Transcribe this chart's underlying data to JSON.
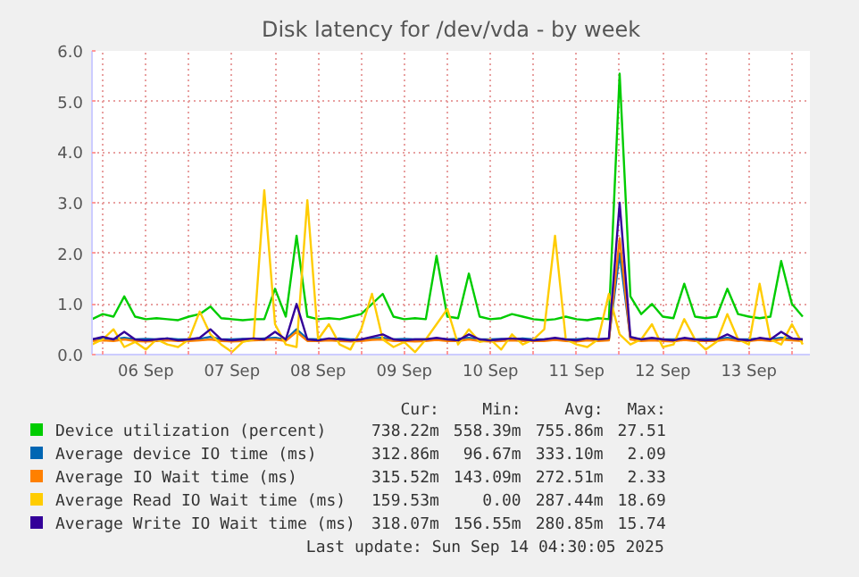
{
  "chart_data": {
    "type": "line",
    "title": "Disk latency for /dev/vda - by week",
    "x": [
      "2025-09-05T21:00",
      "2025-09-06T00:00",
      "2025-09-06T03:00",
      "2025-09-06T06:00",
      "2025-09-06T09:00",
      "2025-09-06T12:00",
      "2025-09-06T15:00",
      "2025-09-06T18:00",
      "2025-09-06T21:00",
      "2025-09-07T00:00",
      "2025-09-07T03:00",
      "2025-09-07T06:00",
      "2025-09-07T09:00",
      "2025-09-07T12:00",
      "2025-09-07T15:00",
      "2025-09-07T18:00",
      "2025-09-07T21:00",
      "2025-09-08T00:00",
      "2025-09-08T03:00",
      "2025-09-08T06:00",
      "2025-09-08T09:00",
      "2025-09-08T12:00",
      "2025-09-08T15:00",
      "2025-09-08T18:00",
      "2025-09-08T21:00",
      "2025-09-09T00:00",
      "2025-09-09T03:00",
      "2025-09-09T06:00",
      "2025-09-09T09:00",
      "2025-09-09T12:00",
      "2025-09-09T15:00",
      "2025-09-09T18:00",
      "2025-09-09T21:00",
      "2025-09-10T00:00",
      "2025-09-10T03:00",
      "2025-09-10T06:00",
      "2025-09-10T09:00",
      "2025-09-10T12:00",
      "2025-09-10T15:00",
      "2025-09-10T18:00",
      "2025-09-10T21:00",
      "2025-09-11T00:00",
      "2025-09-11T03:00",
      "2025-09-11T06:00",
      "2025-09-11T09:00",
      "2025-09-11T12:00",
      "2025-09-11T15:00",
      "2025-09-11T18:00",
      "2025-09-11T21:00",
      "2025-09-12T00:00",
      "2025-09-12T03:00",
      "2025-09-12T06:00",
      "2025-09-12T09:00",
      "2025-09-12T12:00",
      "2025-09-12T15:00",
      "2025-09-12T18:00",
      "2025-09-12T21:00",
      "2025-09-13T00:00",
      "2025-09-13T03:00",
      "2025-09-13T06:00",
      "2025-09-13T09:00",
      "2025-09-13T12:00",
      "2025-09-13T15:00",
      "2025-09-13T18:00",
      "2025-09-13T21:00",
      "2025-09-14T00:00",
      "2025-09-14T03:00"
    ],
    "series": [
      {
        "name": "Device utilization (percent)",
        "color": "#00cc00",
        "values": [
          0.7,
          0.8,
          0.75,
          1.15,
          0.75,
          0.7,
          0.72,
          0.7,
          0.68,
          0.75,
          0.8,
          0.95,
          0.72,
          0.7,
          0.68,
          0.7,
          0.7,
          1.3,
          0.75,
          2.35,
          0.75,
          0.7,
          0.72,
          0.7,
          0.75,
          0.8,
          1.0,
          1.2,
          0.75,
          0.7,
          0.72,
          0.7,
          1.95,
          0.75,
          0.72,
          1.6,
          0.75,
          0.7,
          0.72,
          0.8,
          0.75,
          0.7,
          0.68,
          0.7,
          0.75,
          0.7,
          0.68,
          0.72,
          0.7,
          5.55,
          1.15,
          0.8,
          1.0,
          0.75,
          0.72,
          1.4,
          0.75,
          0.72,
          0.75,
          1.3,
          0.8,
          0.75,
          0.72,
          0.75,
          1.85,
          1.0,
          0.75
        ]
      },
      {
        "name": "Average device IO time (ms)",
        "color": "#0066b3",
        "values": [
          0.3,
          0.32,
          0.3,
          0.33,
          0.3,
          0.31,
          0.3,
          0.32,
          0.3,
          0.3,
          0.31,
          0.35,
          0.3,
          0.3,
          0.31,
          0.3,
          0.32,
          0.33,
          0.3,
          0.5,
          0.31,
          0.3,
          0.3,
          0.32,
          0.3,
          0.3,
          0.32,
          0.33,
          0.3,
          0.31,
          0.3,
          0.3,
          0.32,
          0.3,
          0.31,
          0.33,
          0.3,
          0.3,
          0.31,
          0.3,
          0.32,
          0.3,
          0.3,
          0.31,
          0.3,
          0.3,
          0.32,
          0.3,
          0.31,
          2.0,
          0.33,
          0.3,
          0.31,
          0.3,
          0.3,
          0.32,
          0.3,
          0.31,
          0.3,
          0.33,
          0.3,
          0.3,
          0.32,
          0.3,
          0.33,
          0.31,
          0.3
        ]
      },
      {
        "name": "Average IO Wait time (ms)",
        "color": "#ff8000",
        "values": [
          0.27,
          0.28,
          0.27,
          0.3,
          0.27,
          0.26,
          0.27,
          0.28,
          0.27,
          0.27,
          0.28,
          0.3,
          0.27,
          0.26,
          0.27,
          0.28,
          0.29,
          0.3,
          0.27,
          0.45,
          0.27,
          0.27,
          0.28,
          0.27,
          0.26,
          0.27,
          0.29,
          0.3,
          0.27,
          0.27,
          0.26,
          0.27,
          0.29,
          0.27,
          0.27,
          0.3,
          0.27,
          0.26,
          0.27,
          0.28,
          0.27,
          0.27,
          0.27,
          0.29,
          0.27,
          0.26,
          0.28,
          0.27,
          0.28,
          2.3,
          0.3,
          0.27,
          0.28,
          0.27,
          0.26,
          0.29,
          0.27,
          0.27,
          0.27,
          0.3,
          0.27,
          0.27,
          0.29,
          0.27,
          0.3,
          0.28,
          0.27
        ]
      },
      {
        "name": "Average Read IO Wait time (ms)",
        "color": "#ffcc00",
        "values": [
          0.2,
          0.3,
          0.5,
          0.15,
          0.25,
          0.1,
          0.3,
          0.2,
          0.15,
          0.3,
          0.85,
          0.4,
          0.2,
          0.05,
          0.25,
          0.3,
          3.25,
          0.6,
          0.2,
          0.15,
          3.05,
          0.3,
          0.6,
          0.2,
          0.1,
          0.5,
          1.2,
          0.3,
          0.15,
          0.25,
          0.05,
          0.3,
          0.6,
          0.9,
          0.2,
          0.5,
          0.25,
          0.3,
          0.1,
          0.4,
          0.2,
          0.3,
          0.5,
          2.35,
          0.3,
          0.2,
          0.15,
          0.3,
          1.2,
          0.4,
          0.2,
          0.3,
          0.6,
          0.15,
          0.2,
          0.7,
          0.3,
          0.1,
          0.25,
          0.8,
          0.3,
          0.2,
          1.4,
          0.3,
          0.2,
          0.6,
          0.2
        ]
      },
      {
        "name": "Average Write IO Wait time (ms)",
        "color": "#330099",
        "values": [
          0.3,
          0.35,
          0.3,
          0.45,
          0.3,
          0.28,
          0.3,
          0.32,
          0.28,
          0.3,
          0.33,
          0.5,
          0.3,
          0.28,
          0.3,
          0.32,
          0.3,
          0.45,
          0.3,
          1.0,
          0.3,
          0.28,
          0.32,
          0.3,
          0.28,
          0.3,
          0.35,
          0.4,
          0.3,
          0.28,
          0.3,
          0.3,
          0.33,
          0.3,
          0.28,
          0.4,
          0.3,
          0.28,
          0.3,
          0.32,
          0.3,
          0.28,
          0.3,
          0.33,
          0.3,
          0.28,
          0.32,
          0.3,
          0.32,
          3.0,
          0.35,
          0.3,
          0.33,
          0.3,
          0.28,
          0.33,
          0.3,
          0.28,
          0.3,
          0.4,
          0.3,
          0.28,
          0.33,
          0.3,
          0.45,
          0.32,
          0.3
        ]
      }
    ],
    "xlim": [
      "2025-09-05T21:00",
      "2025-09-14T05:00"
    ],
    "xticks": [
      {
        "value": "2025-09-06T00:00",
        "label": null
      },
      {
        "value": "2025-09-06T12:00",
        "label": "06 Sep"
      },
      {
        "value": "2025-09-07T00:00",
        "label": null
      },
      {
        "value": "2025-09-07T12:00",
        "label": "07 Sep"
      },
      {
        "value": "2025-09-08T00:00",
        "label": null
      },
      {
        "value": "2025-09-08T12:00",
        "label": "08 Sep"
      },
      {
        "value": "2025-09-09T00:00",
        "label": null
      },
      {
        "value": "2025-09-09T12:00",
        "label": "09 Sep"
      },
      {
        "value": "2025-09-10T00:00",
        "label": null
      },
      {
        "value": "2025-09-10T12:00",
        "label": "10 Sep"
      },
      {
        "value": "2025-09-11T00:00",
        "label": null
      },
      {
        "value": "2025-09-11T12:00",
        "label": "11 Sep"
      },
      {
        "value": "2025-09-12T00:00",
        "label": null
      },
      {
        "value": "2025-09-12T12:00",
        "label": "12 Sep"
      },
      {
        "value": "2025-09-13T00:00",
        "label": null
      },
      {
        "value": "2025-09-13T12:00",
        "label": "13 Sep"
      },
      {
        "value": "2025-09-14T00:00",
        "label": null
      }
    ],
    "ylim": [
      0,
      6
    ],
    "yticks": [
      {
        "value": 0,
        "label": "0.0"
      },
      {
        "value": 1,
        "label": "1.0"
      },
      {
        "value": 2,
        "label": "2.0"
      },
      {
        "value": 3,
        "label": "3.0"
      },
      {
        "value": 4,
        "label": "4.0"
      },
      {
        "value": 5,
        "label": "5.0"
      },
      {
        "value": 6,
        "label": "6.0"
      }
    ],
    "grid": true,
    "legend": "bottom",
    "line_style": "solid",
    "annotations": [
      "Cur:",
      "Min:",
      "Avg:",
      "Max:",
      "738.22m",
      "558.39m",
      "755.86m",
      "27.51",
      "312.86m",
      "96.67m",
      "333.10m",
      "2.09",
      "315.52m",
      "143.09m",
      "272.51m",
      "2.33",
      "159.53m",
      "0.00",
      "287.44m",
      "18.69",
      "318.07m",
      "156.55m",
      "280.85m",
      "15.74",
      "Last update: Sun Sep 14 04:30:05 2025"
    ]
  }
}
